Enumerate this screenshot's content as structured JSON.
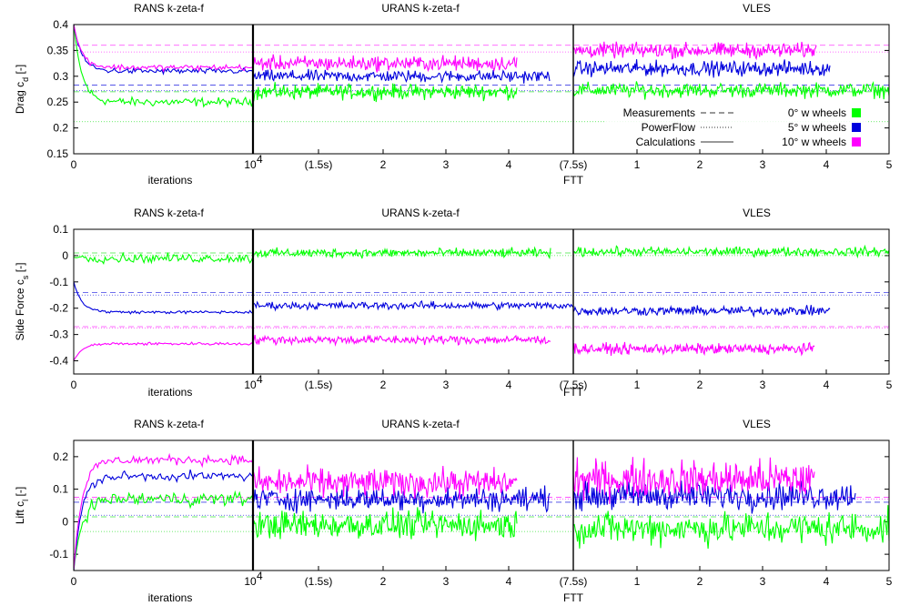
{
  "chart_data": [
    {
      "type": "line",
      "ylabel_main": "Drag c",
      "ylabel_sub": "d",
      "ylabel_unit": " [-]",
      "ylim": [
        0.15,
        0.4
      ],
      "yticks": [
        "0.4",
        "0.35",
        "0.3",
        "0.25",
        "0.2",
        "0.15"
      ],
      "ytick_values": [
        0.4,
        0.35,
        0.3,
        0.25,
        0.2,
        0.15
      ],
      "section_titles": [
        "RANS k-zeta-f",
        "URANS k-zeta-f",
        "VLES"
      ],
      "xtick_labels": {
        "rans": [
          "0",
          "10"
        ],
        "urans": [
          "(1.5s)",
          "2",
          "3",
          "4",
          "(7.5s)"
        ],
        "vles": [
          "1",
          "2",
          "3",
          "4",
          "5"
        ]
      },
      "xlabel_left": "iterations",
      "xlabel_right": "FTT",
      "measurements": {
        "green": 0.27,
        "blue": 0.283,
        "magenta": 0.36
      },
      "powerflow": {
        "green": 0.212,
        "blue": 0.272,
        "magenta": 0.347
      },
      "series": [
        {
          "color": "#00ff00",
          "rans": {
            "start": 0.4,
            "mean": 0.25,
            "noise": 0.006
          },
          "urans": {
            "mean": 0.27,
            "noise": 0.01
          },
          "vles": {
            "mean": 0.273,
            "noise": 0.01
          }
        },
        {
          "color": "#0000dd",
          "rans": {
            "start": 0.4,
            "mean": 0.31,
            "noise": 0.004
          },
          "urans": {
            "mean": 0.3,
            "noise": 0.008
          },
          "vles": {
            "mean": 0.315,
            "noise": 0.01
          }
        },
        {
          "color": "#ff00ff",
          "rans": {
            "start": 0.4,
            "mean": 0.317,
            "noise": 0.004
          },
          "urans": {
            "mean": 0.325,
            "noise": 0.01
          },
          "vles": {
            "mean": 0.35,
            "noise": 0.01
          }
        }
      ],
      "legend": {
        "lines": [
          "Measurements",
          "PowerFlow",
          "Calculations"
        ],
        "colors": [
          "0° w wheels",
          "5° w wheels",
          "10° w wheels"
        ]
      }
    },
    {
      "type": "line",
      "ylabel_main": "Side Force c",
      "ylabel_sub": "s",
      "ylabel_unit": " [-]",
      "ylim": [
        -0.45,
        0.1
      ],
      "yticks": [
        "0.1",
        "0",
        "-0.1",
        "-0.2",
        "-0.3",
        "-0.4"
      ],
      "ytick_values": [
        0.1,
        0,
        -0.1,
        -0.2,
        -0.3,
        -0.4
      ],
      "section_titles": [
        "RANS k-zeta-f",
        "URANS k-zeta-f",
        "VLES"
      ],
      "xtick_labels": {
        "rans": [
          "0",
          "10"
        ],
        "urans": [
          "(1.5s)",
          "2",
          "3",
          "4",
          "(7.5s)"
        ],
        "vles": [
          "1",
          "2",
          "3",
          "4",
          "5"
        ]
      },
      "xlabel_left": "iterations",
      "xlabel_right": "FTT",
      "measurements": {
        "green": 0.01,
        "blue": -0.14,
        "magenta": -0.27
      },
      "powerflow": {
        "green": 0.0,
        "blue": -0.15,
        "magenta": -0.275
      },
      "series": [
        {
          "color": "#00ff00",
          "rans": {
            "start": 0.0,
            "mean": -0.01,
            "noise": 0.012
          },
          "urans": {
            "mean": 0.01,
            "noise": 0.012
          },
          "vles": {
            "mean": 0.015,
            "noise": 0.012
          }
        },
        {
          "color": "#0000dd",
          "rans": {
            "start": -0.1,
            "mean": -0.215,
            "noise": 0.004
          },
          "urans": {
            "mean": -0.19,
            "noise": 0.01
          },
          "vles": {
            "mean": -0.21,
            "noise": 0.012
          }
        },
        {
          "color": "#ff00ff",
          "rans": {
            "start": -0.4,
            "mean": -0.335,
            "noise": 0.004
          },
          "urans": {
            "mean": -0.32,
            "noise": 0.012
          },
          "vles": {
            "mean": -0.355,
            "noise": 0.014
          }
        }
      ]
    },
    {
      "type": "line",
      "ylabel_main": "Lift c",
      "ylabel_sub": "l",
      "ylabel_unit": " [-]",
      "ylim": [
        -0.15,
        0.25
      ],
      "yticks": [
        "0.2",
        "0.1",
        "0",
        "-0.1"
      ],
      "ytick_values": [
        0.2,
        0.1,
        0,
        -0.1
      ],
      "section_titles": [
        "RANS k-zeta-f",
        "URANS k-zeta-f",
        "VLES"
      ],
      "xtick_labels": {
        "rans": [
          "0",
          "10"
        ],
        "urans": [
          "(1.5s)",
          "2",
          "3",
          "4",
          "(7.5s)"
        ],
        "vles": [
          "1",
          "2",
          "3",
          "4",
          "5"
        ]
      },
      "xlabel_left": "iterations",
      "xlabel_right": "FTT",
      "measurements": {
        "green": 0.015,
        "blue": 0.06,
        "magenta": 0.075
      },
      "powerflow": {
        "green": -0.03,
        "blue": 0.02,
        "magenta": 0.07
      },
      "series": [
        {
          "color": "#00ff00",
          "rans": {
            "start": -0.15,
            "mean": 0.07,
            "noise": 0.015
          },
          "urans": {
            "mean": -0.01,
            "noise": 0.03
          },
          "vles": {
            "mean": -0.02,
            "noise": 0.035
          }
        },
        {
          "color": "#0000dd",
          "rans": {
            "start": -0.15,
            "mean": 0.14,
            "noise": 0.01
          },
          "urans": {
            "mean": 0.07,
            "noise": 0.025
          },
          "vles": {
            "mean": 0.08,
            "noise": 0.03
          }
        },
        {
          "color": "#ff00ff",
          "rans": {
            "start": -0.15,
            "mean": 0.19,
            "noise": 0.01
          },
          "urans": {
            "mean": 0.12,
            "noise": 0.03
          },
          "vles": {
            "mean": 0.13,
            "noise": 0.04
          }
        }
      ]
    }
  ],
  "ten_power": "4"
}
